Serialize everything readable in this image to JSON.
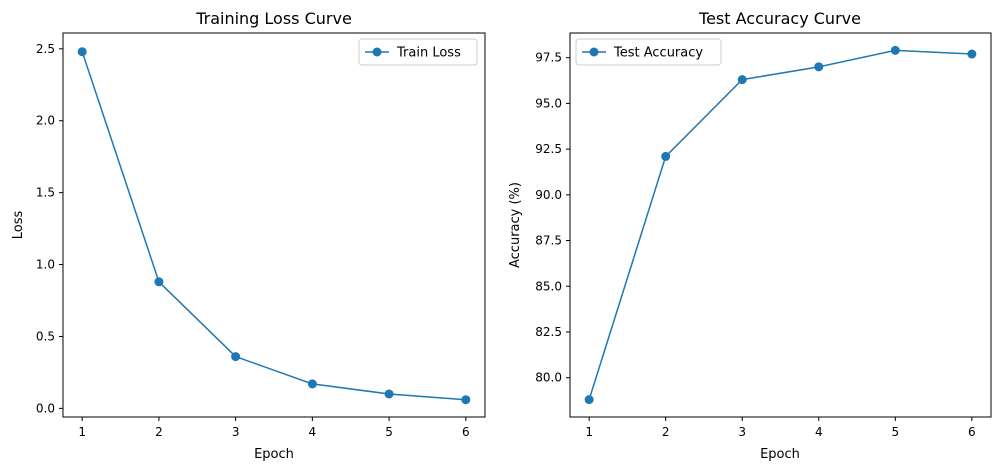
{
  "chart_data": [
    {
      "type": "line",
      "title": "Training Loss Curve",
      "xlabel": "Epoch",
      "ylabel": "Loss",
      "x": [
        1,
        2,
        3,
        4,
        5,
        6
      ],
      "series": [
        {
          "name": "Train Loss",
          "values": [
            2.48,
            0.88,
            0.36,
            0.17,
            0.1,
            0.06
          ],
          "color": "#1f77b4",
          "marker": "circle"
        }
      ],
      "xticks": [
        1,
        2,
        3,
        4,
        5,
        6
      ],
      "xtick_labels": [
        "1",
        "2",
        "3",
        "4",
        "5",
        "6"
      ],
      "yticks": [
        0.0,
        0.5,
        1.0,
        1.5,
        2.0,
        2.5
      ],
      "ytick_labels": [
        "0.0",
        "0.5",
        "1.0",
        "1.5",
        "2.0",
        "2.5"
      ],
      "xlim": [
        0.75,
        6.25
      ],
      "ylim": [
        -0.06,
        2.61
      ],
      "grid": false,
      "legend": "upper right"
    },
    {
      "type": "line",
      "title": "Test Accuracy Curve",
      "xlabel": "Epoch",
      "ylabel": "Accuracy (%)",
      "x": [
        1,
        2,
        3,
        4,
        5,
        6
      ],
      "series": [
        {
          "name": "Test Accuracy",
          "values": [
            78.8,
            92.1,
            96.3,
            97.0,
            97.9,
            97.7
          ],
          "color": "#1f77b4",
          "marker": "circle"
        }
      ],
      "xticks": [
        1,
        2,
        3,
        4,
        5,
        6
      ],
      "xtick_labels": [
        "1",
        "2",
        "3",
        "4",
        "5",
        "6"
      ],
      "yticks": [
        80.0,
        82.5,
        85.0,
        87.5,
        90.0,
        92.5,
        95.0,
        97.5
      ],
      "ytick_labels": [
        "80.0",
        "82.5",
        "85.0",
        "87.5",
        "90.0",
        "92.5",
        "95.0",
        "97.5"
      ],
      "xlim": [
        0.75,
        6.25
      ],
      "ylim": [
        77.85,
        98.85
      ],
      "grid": false,
      "legend": "upper left"
    }
  ]
}
